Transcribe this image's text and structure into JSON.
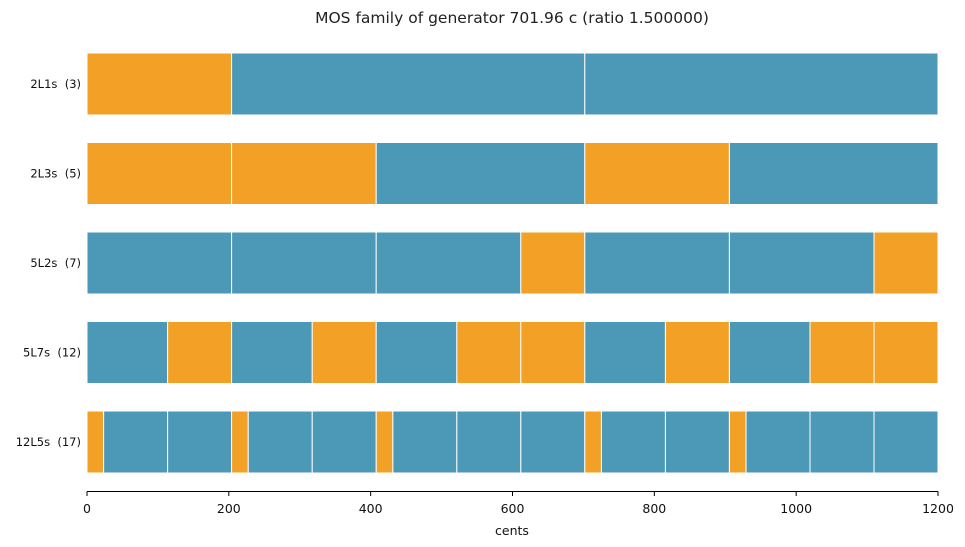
{
  "chart_data": {
    "type": "bar",
    "title": "MOS family of generator 701.96 c (ratio 1.500000)",
    "xlabel": "cents",
    "xlim": [
      0,
      1200
    ],
    "xticks": [
      0,
      200,
      400,
      600,
      800,
      1000,
      1200
    ],
    "colors": {
      "L": "#4c98b7",
      "s": "#f2a026"
    },
    "grid": false,
    "rows": [
      {
        "label": "2L1s  (3)",
        "steps": [
          "s",
          "L",
          "L"
        ]
      },
      {
        "label": "2L3s  (5)",
        "steps": [
          "s",
          "s",
          "L",
          "s",
          "L"
        ]
      },
      {
        "label": "5L2s  (7)",
        "steps": [
          "L",
          "L",
          "L",
          "s",
          "L",
          "L",
          "s"
        ]
      },
      {
        "label": "5L7s  (12)",
        "steps": [
          "L",
          "s",
          "L",
          "s",
          "L",
          "s",
          "s",
          "L",
          "s",
          "L",
          "s",
          "s"
        ]
      },
      {
        "label": "12L5s  (17)",
        "steps": [
          "s",
          "L",
          "L",
          "s",
          "L",
          "L",
          "s",
          "L",
          "L",
          "L",
          "s",
          "L",
          "L",
          "s",
          "L",
          "L",
          "L"
        ]
      }
    ]
  }
}
